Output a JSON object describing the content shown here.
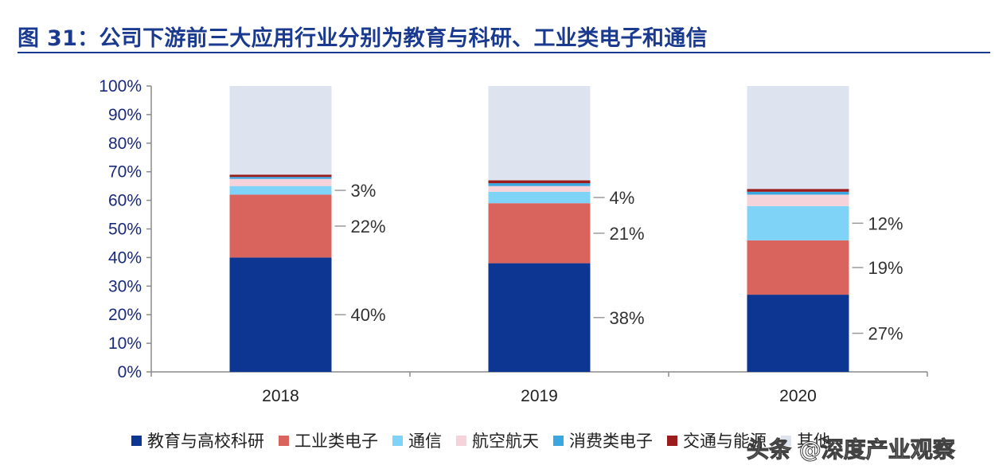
{
  "title": "图 31：公司下游前三大应用行业分别为教育与科研、工业类电子和通信",
  "watermark": "头条 @深度产业观察",
  "chart_data": {
    "type": "bar",
    "stacked": true,
    "categories": [
      "2018",
      "2019",
      "2020"
    ],
    "ylim": [
      0,
      100
    ],
    "y_ticks": [
      "0%",
      "10%",
      "20%",
      "30%",
      "40%",
      "50%",
      "60%",
      "70%",
      "80%",
      "90%",
      "100%"
    ],
    "series": [
      {
        "name": "教育与高校科研",
        "color": "#0d3592",
        "values": [
          40,
          38,
          27
        ],
        "labels": [
          "40%",
          "38%",
          "27%"
        ]
      },
      {
        "name": "工业类电子",
        "color": "#d9645e",
        "values": [
          22,
          21,
          19
        ],
        "labels": [
          "22%",
          "21%",
          "19%"
        ]
      },
      {
        "name": "通信",
        "color": "#7fd3f7",
        "values": [
          3,
          4,
          12
        ],
        "labels": [
          "3%",
          "4%",
          "12%"
        ]
      },
      {
        "name": "航空航天",
        "color": "#f6d3da",
        "values": [
          2.5,
          2,
          4
        ]
      },
      {
        "name": "消费类电子",
        "color": "#3aa7e0",
        "values": [
          0.7,
          1,
          1
        ]
      },
      {
        "name": "交通与能源",
        "color": "#9b1c1c",
        "values": [
          0.8,
          1,
          1
        ]
      },
      {
        "name": "其他",
        "color": "#dde3ef",
        "values": [
          31,
          33,
          36
        ]
      }
    ],
    "grid": false,
    "legend_position": "bottom"
  }
}
